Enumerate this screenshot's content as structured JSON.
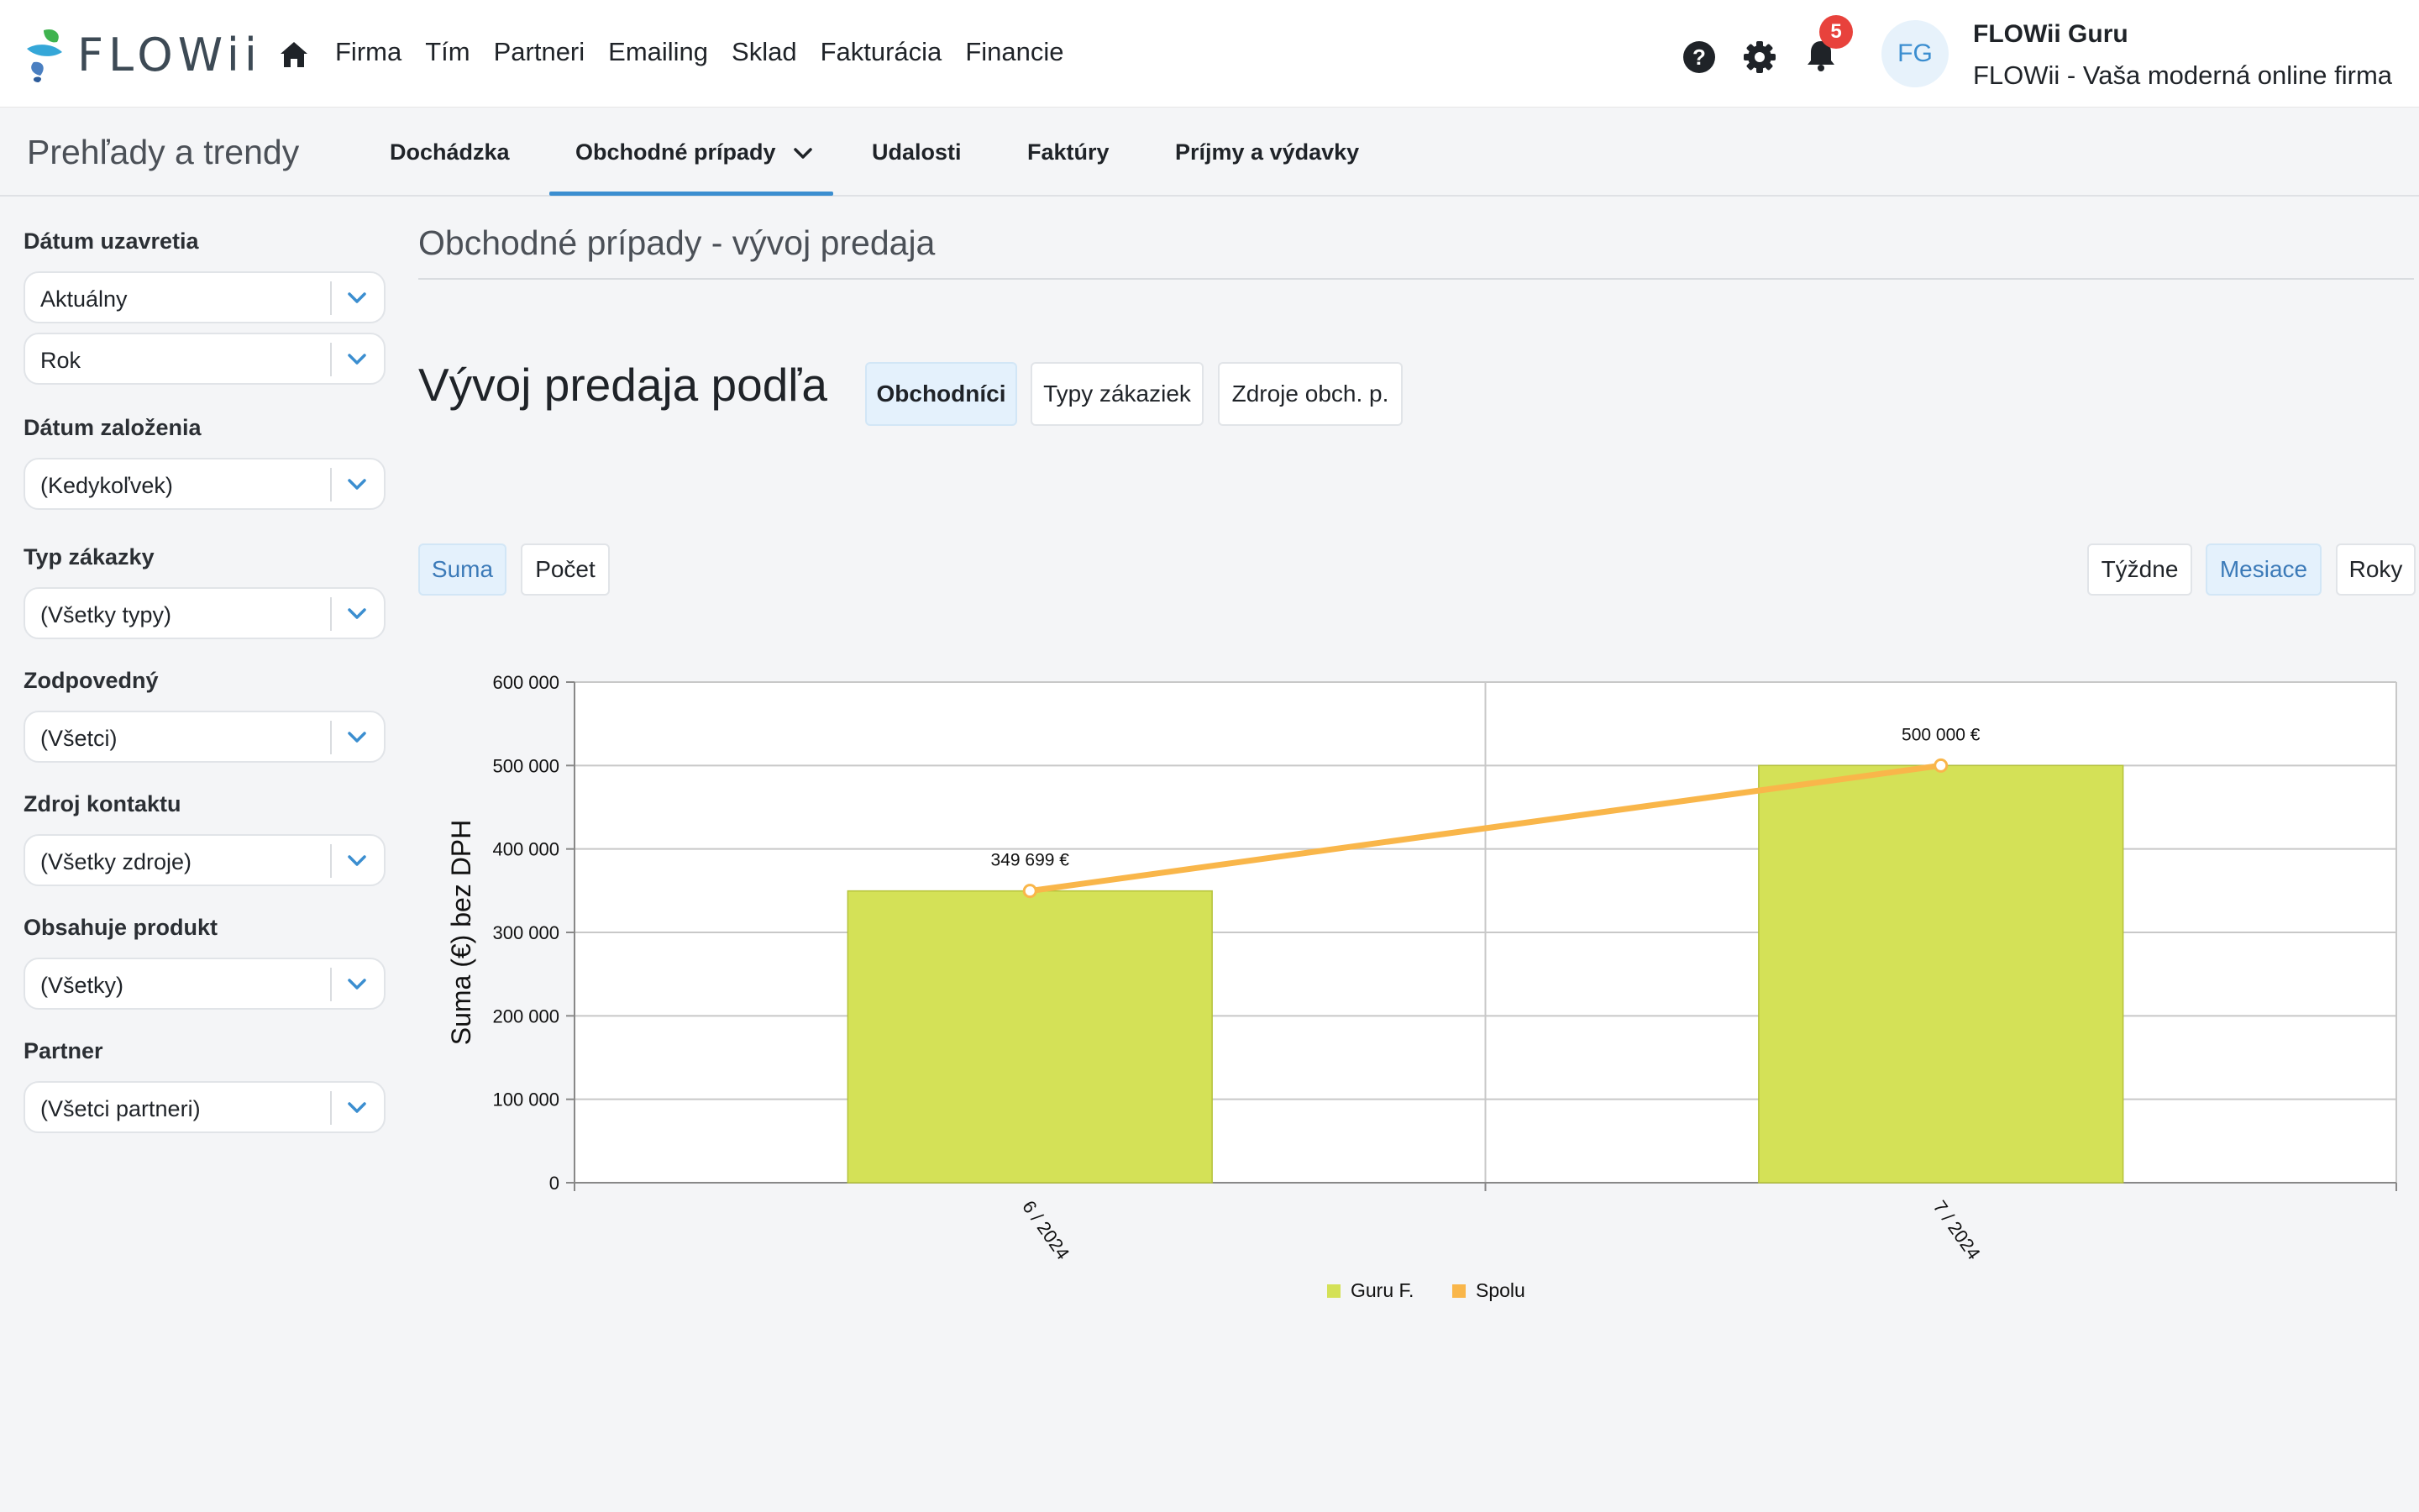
{
  "header": {
    "logo_text": "FLOWii",
    "nav": [
      "Firma",
      "Tím",
      "Partneri",
      "Emailing",
      "Sklad",
      "Fakturácia",
      "Financie"
    ],
    "notification_count": "5",
    "avatar_initials": "FG",
    "user_name": "FLOWii Guru",
    "user_company": "FLOWii - Vaša moderná online firma"
  },
  "subheader": {
    "title": "Prehľady a trendy",
    "tabs": [
      "Dochádzka",
      "Obchodné prípady",
      "Udalosti",
      "Faktúry",
      "Príjmy a výdavky"
    ],
    "active_tab": "Obchodné prípady"
  },
  "filters": [
    {
      "label": "Dátum uzavretia",
      "values": [
        "Aktuálny",
        "Rok"
      ]
    },
    {
      "label": "Dátum založenia",
      "values": [
        "(Kedykoľvek)"
      ]
    },
    {
      "label": "Typ zákazky",
      "values": [
        "(Všetky typy)"
      ]
    },
    {
      "label": "Zodpovedný",
      "values": [
        "(Všetci)"
      ]
    },
    {
      "label": "Zdroj kontaktu",
      "values": [
        "(Všetky zdroje)"
      ]
    },
    {
      "label": "Obsahuje produkt",
      "values": [
        "(Všetky)"
      ]
    },
    {
      "label": "Partner",
      "values": [
        "(Všetci partneri)"
      ]
    }
  ],
  "main": {
    "page_title": "Obchodné prípady - vývoj predaja",
    "dev_title": "Vývoj predaja podľa",
    "group_buttons": [
      "Obchodníci",
      "Typy zákaziek",
      "Zdroje obch. p."
    ],
    "group_active": "Obchodníci",
    "metric_buttons": [
      "Suma",
      "Počet"
    ],
    "metric_active": "Suma",
    "period_buttons": [
      "Týždne",
      "Mesiace",
      "Roky"
    ],
    "period_active": "Mesiace"
  },
  "colors": {
    "bar": "#d4e157",
    "line": "#f9b64a",
    "accent": "#3b8ed0",
    "badge": "#e8423c"
  },
  "chart_data": {
    "type": "bar",
    "categories": [
      "6 / 2024",
      "7 / 2024"
    ],
    "series": [
      {
        "name": "Guru F.",
        "type": "bar",
        "values": [
          349699,
          500000
        ]
      },
      {
        "name": "Spolu",
        "type": "line",
        "values": [
          349699,
          500000
        ]
      }
    ],
    "data_labels": [
      "349 699 €",
      "500 000 €"
    ],
    "ylabel": "Suma (€) bez DPH",
    "ylim": [
      0,
      600000
    ],
    "yticks": [
      0,
      100000,
      200000,
      300000,
      400000,
      500000,
      600000
    ],
    "ytick_labels": [
      "0",
      "100 000",
      "200 000",
      "300 000",
      "400 000",
      "500 000",
      "600 000"
    ],
    "grid": true,
    "legend_position": "bottom-center"
  }
}
